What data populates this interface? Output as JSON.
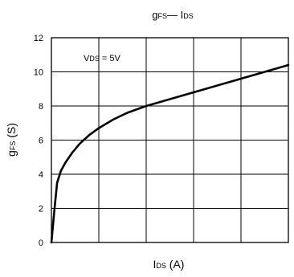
{
  "chart_data": {
    "type": "line",
    "title": {
      "main": "g",
      "main_sub": "FS",
      "dash": "— I",
      "tail_sub": "DS"
    },
    "xlabel": {
      "main": "I",
      "sub": "DS",
      "unit": " (A)"
    },
    "ylabel": {
      "main": "g",
      "sub": "FS",
      "unit": " (S)"
    },
    "annotation": {
      "main": "V",
      "sub": "DS",
      "rest": " = 5V"
    },
    "ylim": [
      0,
      12
    ],
    "xlim": [
      0,
      5
    ],
    "y_ticks": [
      "0",
      "2",
      "4",
      "6",
      "8",
      "10",
      "12"
    ],
    "x_tick_labels": [],
    "grid": true,
    "series": [
      {
        "x": [
          0,
          0.06,
          0.12,
          0.2,
          0.3,
          0.45,
          0.6,
          0.8,
          1.0,
          1.3,
          1.6,
          2.0,
          2.5,
          3.0,
          3.5,
          4.0,
          4.5,
          5.0
        ],
        "y": [
          0,
          1.8,
          3.5,
          4.2,
          4.7,
          5.3,
          5.8,
          6.3,
          6.7,
          7.2,
          7.6,
          8.0,
          8.4,
          8.8,
          9.2,
          9.6,
          10.0,
          10.4
        ]
      }
    ]
  }
}
